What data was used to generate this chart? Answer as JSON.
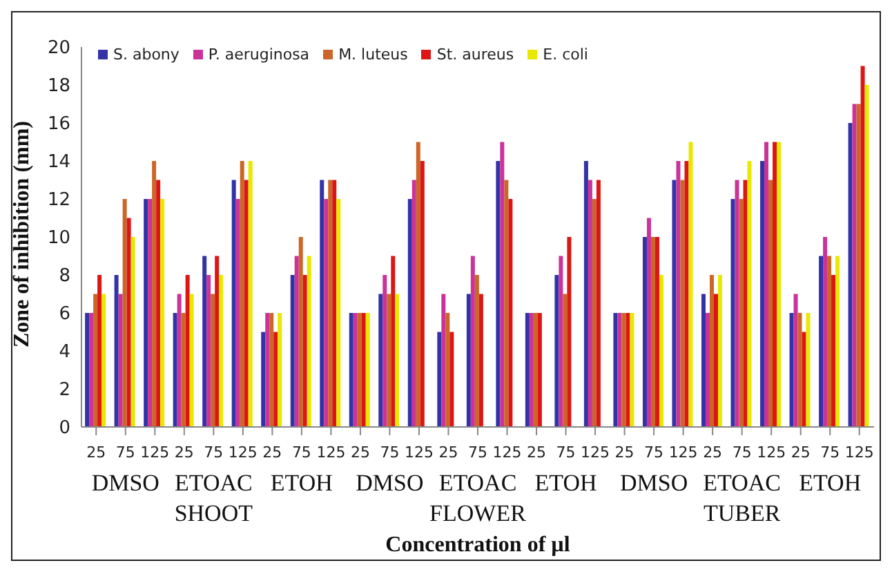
{
  "chart_data": {
    "type": "bar",
    "xlabel": "Concentration of µl",
    "ylabel": "Zone of inhibition (mm)",
    "categories": [
      "25",
      "75",
      "125",
      "25",
      "75",
      "125",
      "25",
      "75",
      "125",
      "25",
      "75",
      "125",
      "25",
      "75",
      "125",
      "25",
      "75",
      "125",
      "25",
      "75",
      "125",
      "25",
      "75",
      "125",
      "25",
      "75",
      "125"
    ],
    "series": [
      {
        "name": "S.  abony",
        "color": "#3333a8",
        "values": [
          6,
          8,
          12,
          6,
          9,
          13,
          5,
          8,
          13,
          6,
          7,
          12,
          5,
          7,
          14,
          6,
          8,
          14,
          6,
          10,
          13,
          7,
          12,
          14,
          6,
          9,
          16
        ]
      },
      {
        "name": "P. aeruginosa",
        "color": "#cc3399",
        "values": [
          6,
          7,
          12,
          7,
          8,
          12,
          6,
          9,
          12,
          6,
          8,
          13,
          7,
          9,
          15,
          6,
          9,
          13,
          6,
          11,
          14,
          6,
          13,
          15,
          7,
          10,
          17
        ]
      },
      {
        "name": "M. luteus",
        "color": "#cc6628",
        "values": [
          7,
          12,
          14,
          6,
          7,
          14,
          6,
          10,
          13,
          6,
          7,
          15,
          6,
          8,
          13,
          6,
          7,
          12,
          6,
          10,
          13,
          8,
          12,
          13,
          6,
          9,
          17
        ]
      },
      {
        "name": "St. aureus",
        "color": "#dd1515",
        "values": [
          8,
          11,
          13,
          8,
          9,
          13,
          5,
          8,
          13,
          6,
          9,
          14,
          5,
          7,
          12,
          6,
          10,
          13,
          6,
          10,
          14,
          7,
          13,
          15,
          5,
          8,
          19
        ]
      },
      {
        "name": "E. coli",
        "color": "#e8e800",
        "values": [
          7,
          10,
          12,
          7,
          8,
          14,
          6,
          9,
          12,
          6,
          7,
          null,
          null,
          null,
          null,
          null,
          null,
          null,
          6,
          8,
          15,
          8,
          14,
          15,
          6,
          9,
          18
        ]
      }
    ],
    "annotations": [
      "DMSO",
      "ETOAC",
      "ETOH",
      "DMSO",
      "ETOAC",
      "ETOH",
      "DMSO",
      "ETOAC",
      "ETOH",
      "SHOOT",
      "FLOWER",
      "TUBER"
    ],
    "ylim": [
      0,
      20
    ],
    "yticks": [
      0,
      2,
      4,
      6,
      8,
      10,
      12,
      14,
      16,
      18,
      20
    ],
    "legend": "top left"
  }
}
